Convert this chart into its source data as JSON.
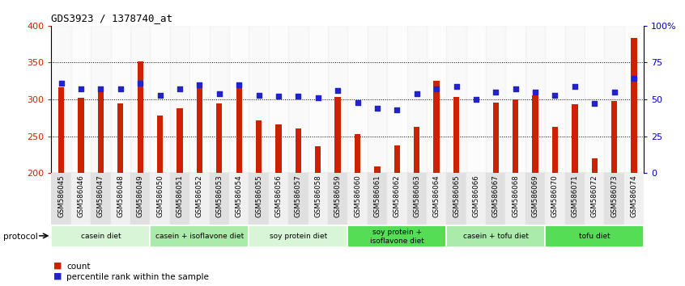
{
  "title": "GDS3923 / 1378740_at",
  "samples": [
    "GSM586045",
    "GSM586046",
    "GSM586047",
    "GSM586048",
    "GSM586049",
    "GSM586050",
    "GSM586051",
    "GSM586052",
    "GSM586053",
    "GSM586054",
    "GSM586055",
    "GSM586056",
    "GSM586057",
    "GSM586058",
    "GSM586059",
    "GSM586060",
    "GSM586061",
    "GSM586062",
    "GSM586063",
    "GSM586064",
    "GSM586065",
    "GSM586066",
    "GSM586067",
    "GSM586068",
    "GSM586069",
    "GSM586070",
    "GSM586071",
    "GSM586072",
    "GSM586073",
    "GSM586074"
  ],
  "counts": [
    316,
    302,
    315,
    294,
    352,
    278,
    288,
    315,
    295,
    315,
    271,
    266,
    260,
    236,
    303,
    253,
    209,
    238,
    263,
    325,
    303,
    200,
    296,
    300,
    305,
    263,
    293,
    220,
    298,
    383
  ],
  "percentiles": [
    61,
    57,
    57,
    57,
    61,
    53,
    57,
    60,
    54,
    60,
    53,
    52,
    52,
    51,
    56,
    48,
    44,
    43,
    54,
    57,
    59,
    50,
    55,
    57,
    55,
    53,
    59,
    47,
    55,
    64
  ],
  "groups": [
    {
      "label": "casein diet",
      "start": 0,
      "end": 5,
      "color": "#d8f5d8"
    },
    {
      "label": "casein + isoflavone diet",
      "start": 5,
      "end": 10,
      "color": "#aaeaaa"
    },
    {
      "label": "soy protein diet",
      "start": 10,
      "end": 15,
      "color": "#d8f5d8"
    },
    {
      "label": "soy protein +\nisoflavone diet",
      "start": 15,
      "end": 20,
      "color": "#55dd55"
    },
    {
      "label": "casein + tofu diet",
      "start": 20,
      "end": 25,
      "color": "#aaeaaa"
    },
    {
      "label": "tofu diet",
      "start": 25,
      "end": 30,
      "color": "#55dd55"
    }
  ],
  "bar_color": "#cc2200",
  "dot_color": "#2222cc",
  "ylim_left": [
    200,
    400
  ],
  "ylim_right": [
    0,
    100
  ],
  "yticks_left": [
    200,
    250,
    300,
    350,
    400
  ],
  "yticks_right": [
    0,
    25,
    50,
    75,
    100
  ],
  "gridlines": [
    250,
    300,
    350
  ],
  "background_color": "#ffffff"
}
